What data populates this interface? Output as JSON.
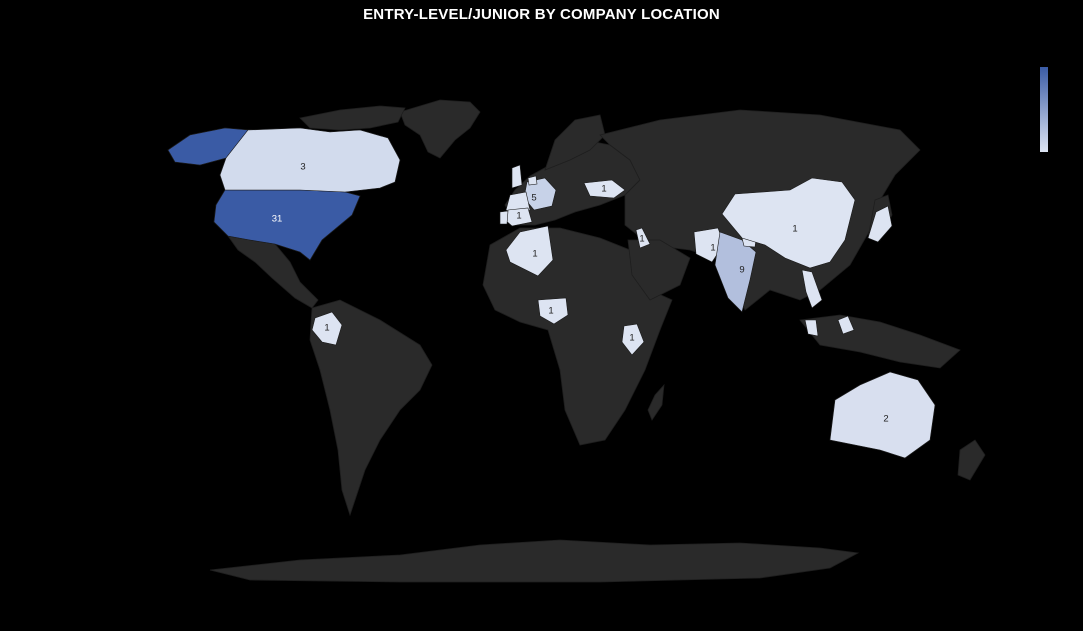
{
  "chart_data": {
    "type": "choropleth",
    "title": "ENTRY-LEVEL/JUNIOR BY COMPANY LOCATION",
    "color_scale": {
      "low": "#dde4f2",
      "high": "#3a5ba5",
      "min": 1,
      "max": 31
    },
    "background": "#000000",
    "land_color": "#2a2a2a",
    "legend": {
      "position": "top-right",
      "shown": "color-bar"
    },
    "regions": [
      {
        "name": "United States",
        "value": 31,
        "label": "31"
      },
      {
        "name": "Canada",
        "value": 3,
        "label": "3"
      },
      {
        "name": "Germany",
        "value": 5,
        "label": "5"
      },
      {
        "name": "India",
        "value": 9,
        "label": "9"
      },
      {
        "name": "Australia",
        "value": 2,
        "label": "2"
      },
      {
        "name": "Spain",
        "value": 1,
        "label": "1"
      },
      {
        "name": "Ukraine",
        "value": 1,
        "label": "1"
      },
      {
        "name": "Algeria",
        "value": 1,
        "label": "1"
      },
      {
        "name": "Nigeria",
        "value": 1,
        "label": "1"
      },
      {
        "name": "Kenya",
        "value": 1,
        "label": "1"
      },
      {
        "name": "Colombia",
        "value": 1,
        "label": "1"
      },
      {
        "name": "Israel",
        "value": 1,
        "label": "1"
      },
      {
        "name": "Pakistan",
        "value": 1,
        "label": "1"
      },
      {
        "name": "China",
        "value": 1,
        "label": "1"
      },
      {
        "name": "Japan",
        "value": 1,
        "label": ""
      },
      {
        "name": "Vietnam",
        "value": 1,
        "label": ""
      },
      {
        "name": "Philippines",
        "value": 1,
        "label": ""
      },
      {
        "name": "Malaysia",
        "value": 1,
        "label": ""
      },
      {
        "name": "Nepal",
        "value": 1,
        "label": ""
      },
      {
        "name": "United Kingdom",
        "value": 1,
        "label": ""
      },
      {
        "name": "France",
        "value": 1,
        "label": ""
      },
      {
        "name": "Netherlands",
        "value": 1,
        "label": ""
      },
      {
        "name": "Portugal",
        "value": 1,
        "label": ""
      }
    ]
  }
}
